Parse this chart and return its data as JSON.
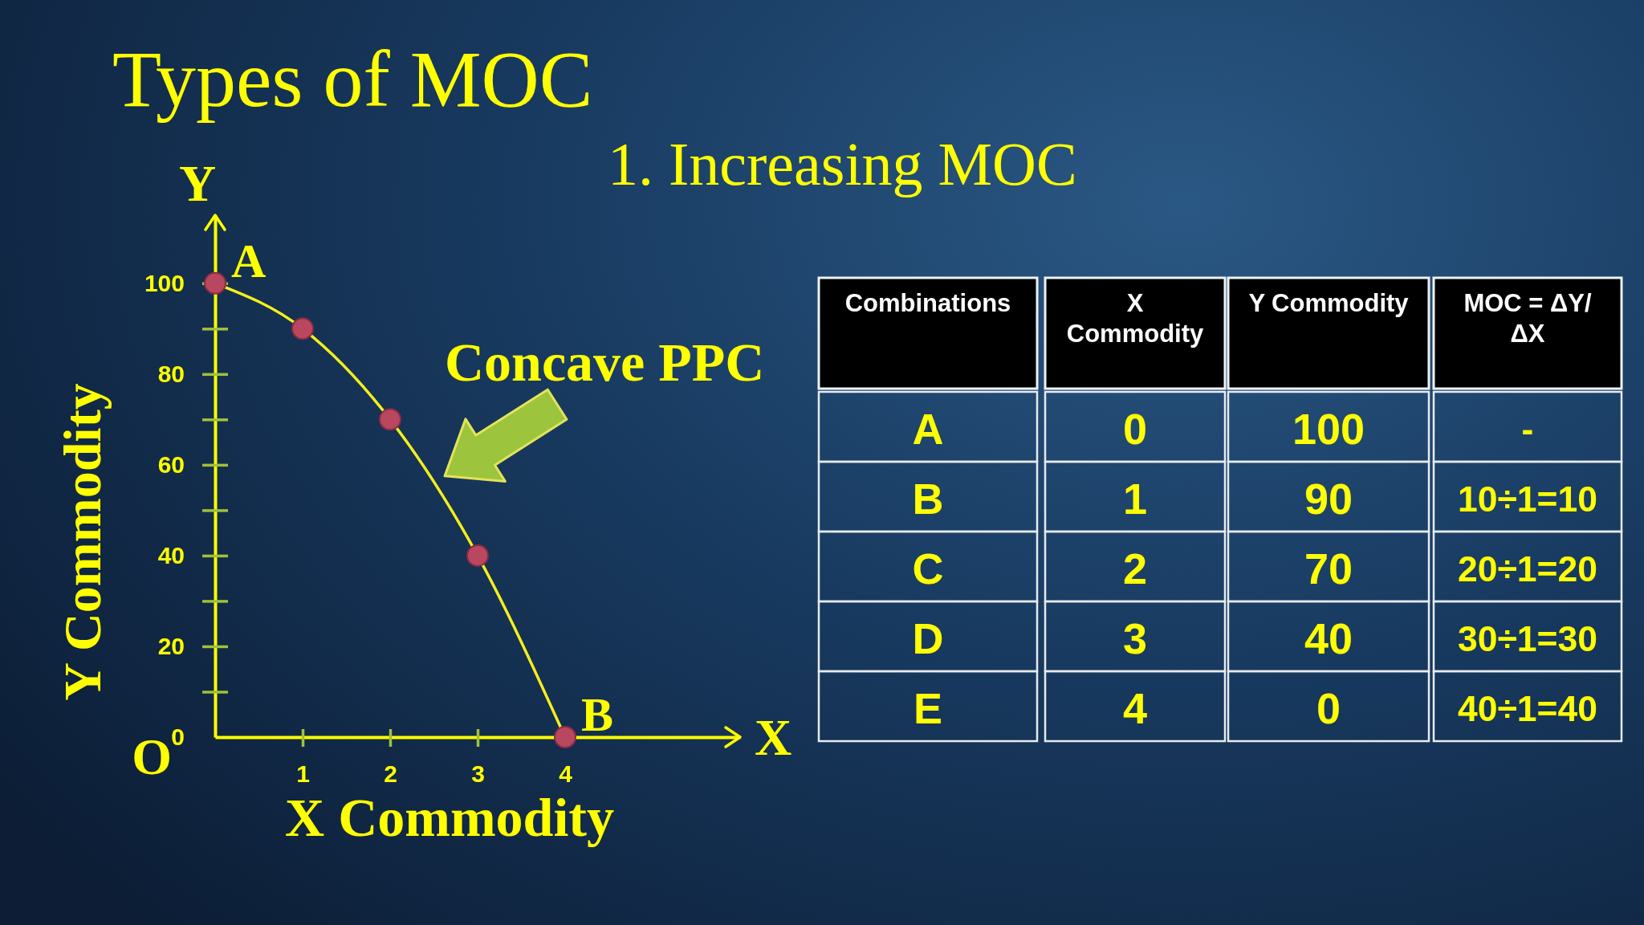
{
  "chart_data": [
    {
      "type": "line",
      "title": "Types of MOC",
      "subtitle": "1. Increasing MOC",
      "xlabel": "X Commodity",
      "ylabel": "Y Commodity",
      "x": [
        0,
        1,
        2,
        3,
        4
      ],
      "series": [
        {
          "color": "#f5ee1c",
          "values": [
            100,
            90,
            70,
            40,
            0
          ]
        }
      ],
      "marker": "circle",
      "xlim": [
        0,
        6
      ],
      "ylim": [
        0,
        115
      ],
      "xticks": [
        1,
        2,
        3,
        4
      ],
      "yticks": [
        0,
        {
          "value": 10,
          "label": null
        },
        20,
        {
          "value": 30,
          "label": null
        },
        40,
        {
          "value": 50,
          "label": null
        },
        60,
        {
          "value": 70,
          "label": null
        },
        80,
        {
          "value": 90,
          "label": null
        },
        100
      ],
      "annotations": [
        "Y",
        "X",
        "O",
        {
          "text": "A",
          "x": 0,
          "y": 100
        },
        {
          "text": "B",
          "x": 4,
          "y": 0
        },
        {
          "text": "Concave PPC",
          "x": 2.5,
          "y": 56
        }
      ]
    },
    {
      "type": "other",
      "xlabel": "Combinations",
      "categories": [
        "A",
        "B",
        "C",
        "D",
        "E"
      ],
      "series": [
        {
          "name": "X Commodity",
          "values": [
            0,
            1,
            2,
            3,
            4
          ]
        },
        {
          "name": "Y Commodity",
          "values": [
            100,
            90,
            70,
            40,
            0
          ]
        },
        {
          "name": "MOC = ΔY/ΔX",
          "values": [
            null,
            10,
            20,
            30,
            40
          ],
          "value_labels": [
            "-",
            "10÷1=10",
            "20÷1=20",
            "30÷1=30",
            "40÷1=40"
          ]
        }
      ],
      "data_labels": true
    }
  ]
}
